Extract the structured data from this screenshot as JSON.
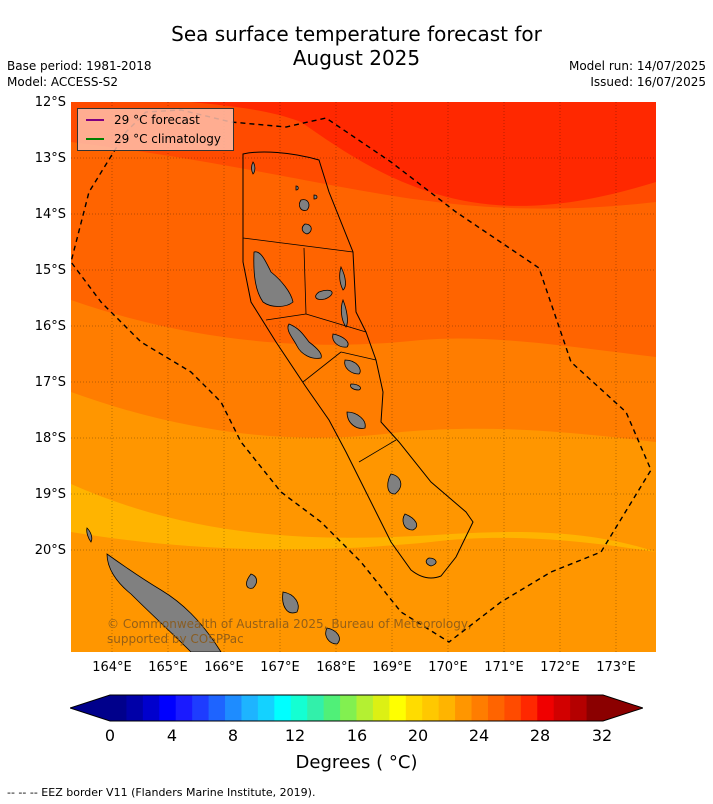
{
  "title_line1": "Sea surface temperature forecast for",
  "title_line2": "August 2025",
  "meta": {
    "base_period": "Base period: 1981-2018",
    "model": "Model: ACCESS-S2",
    "model_run": "Model run: 14/07/2025",
    "issued": "Issued: 16/07/2025"
  },
  "legend": {
    "forecast_label": "29 °C  forecast",
    "climatology_label": "29 °C  climatology",
    "forecast_color": "#800080",
    "climatology_color": "#008000"
  },
  "lat_labels": [
    "12°S",
    "13°S",
    "14°S",
    "15°S",
    "16°S",
    "17°S",
    "18°S",
    "19°S",
    "20°S"
  ],
  "lon_labels": [
    "164°E",
    "165°E",
    "166°E",
    "167°E",
    "168°E",
    "169°E",
    "170°E",
    "171°E",
    "172°E",
    "173°E"
  ],
  "copyright": "© Commonwealth of Australia 2025, Bureau of Meteorology, supported by COSPPac",
  "colorbar": {
    "tick_labels": [
      "0",
      "4",
      "8",
      "12",
      "16",
      "20",
      "24",
      "28",
      "32"
    ],
    "title": "Degrees ( °C)",
    "colors": [
      "#00008b",
      "#0000a8",
      "#0000cd",
      "#0000ff",
      "#1a1aff",
      "#1e3cff",
      "#1e64ff",
      "#1e8cff",
      "#1eb4ff",
      "#14d2ff",
      "#00ffff",
      "#14ffd2",
      "#32f0aa",
      "#50f078",
      "#82f050",
      "#b4f032",
      "#dcf014",
      "#ffff00",
      "#ffdc00",
      "#ffc800",
      "#ffb400",
      "#ff9600",
      "#ff7d00",
      "#ff6400",
      "#ff4b00",
      "#ff2800",
      "#f00000",
      "#d20000",
      "#b40000",
      "#8b0000"
    ]
  },
  "footer": "--  --  -- EEZ border V11 (Flanders Marine Institute, 2019)."
}
